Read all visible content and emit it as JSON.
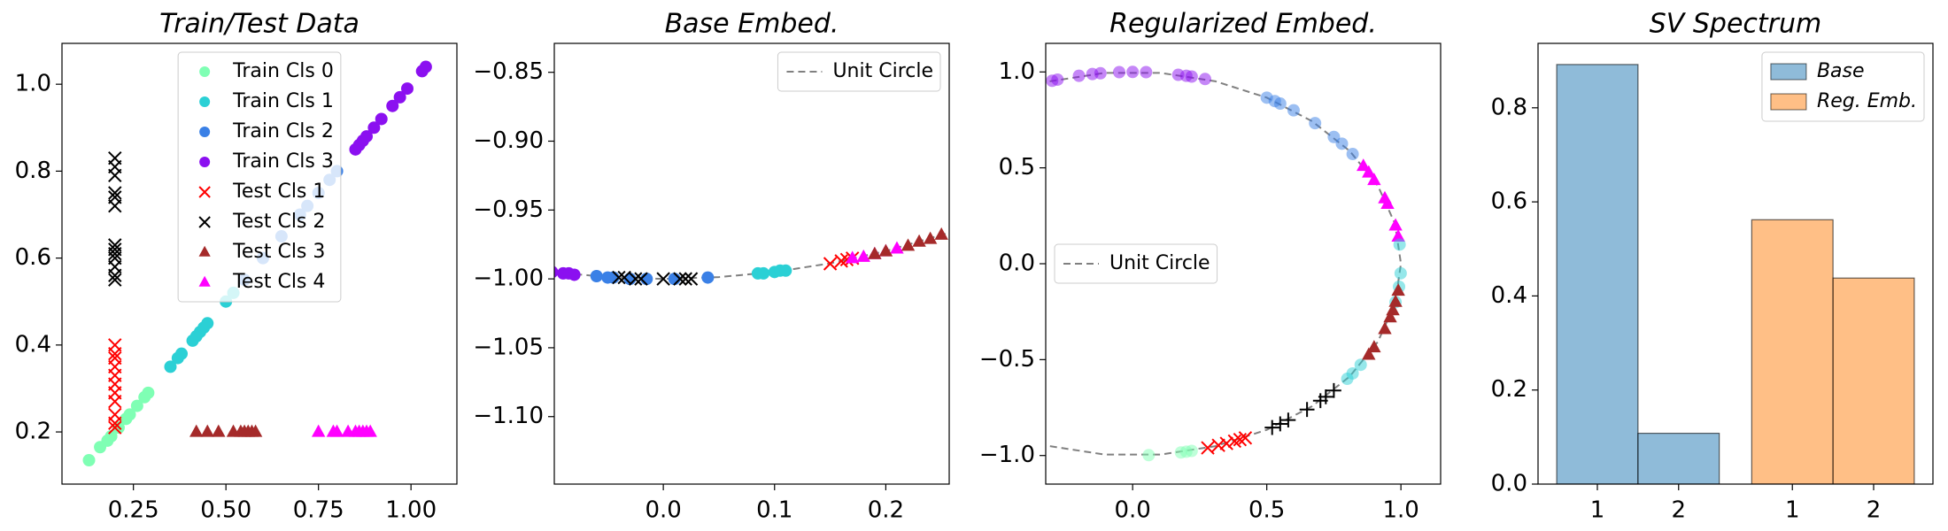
{
  "chart_data": [
    {
      "type": "scatter",
      "title": "Train/Test Data",
      "xlim": [
        0.057,
        1.124
      ],
      "xticks": [
        0.25,
        {
          "value": 0.5,
          "label": "0.50"
        },
        0.75,
        {
          "value": 1.0,
          "label": "1.00"
        }
      ],
      "ylim": [
        0.08,
        1.094
      ],
      "yticks": [
        0.2,
        0.4,
        0.6,
        0.8,
        {
          "value": 1.0,
          "label": "1.0"
        }
      ],
      "legend": "upper center",
      "series": [
        {
          "name": "Train Cls 0",
          "color": "#7fffb4",
          "marker": "o",
          "x": [
            0.13,
            0.16,
            0.18,
            0.19,
            0.21,
            0.23,
            0.24,
            0.26,
            0.28,
            0.29
          ],
          "values": [
            0.135,
            0.165,
            0.18,
            0.19,
            0.21,
            0.23,
            0.24,
            0.26,
            0.28,
            0.29
          ]
        },
        {
          "name": "Train Cls 1",
          "color": "#2bd0d5",
          "marker": "o",
          "x": [
            0.35,
            0.37,
            0.38,
            0.41,
            0.42,
            0.43,
            0.44,
            0.45,
            0.5,
            0.52
          ],
          "values": [
            0.35,
            0.37,
            0.38,
            0.41,
            0.42,
            0.43,
            0.44,
            0.45,
            0.5,
            0.52
          ]
        },
        {
          "name": "Train Cls 2",
          "color": "#3a80e6",
          "marker": "o",
          "x": [
            0.55,
            0.6,
            0.65,
            0.7,
            0.72,
            0.75,
            0.78,
            0.8
          ],
          "values": [
            0.55,
            0.6,
            0.65,
            0.7,
            0.72,
            0.75,
            0.78,
            0.8
          ]
        },
        {
          "name": "Train Cls 3",
          "color": "#8b10f0",
          "marker": "o",
          "x": [
            0.85,
            0.86,
            0.87,
            0.88,
            0.9,
            0.92,
            0.95,
            0.97,
            0.99,
            1.03,
            1.04
          ],
          "values": [
            0.85,
            0.86,
            0.87,
            0.88,
            0.9,
            0.92,
            0.95,
            0.97,
            0.99,
            1.03,
            1.04
          ]
        },
        {
          "name": "Test Cls 1",
          "color": "#ff0000",
          "marker": "x",
          "x": [
            0.2,
            0.2,
            0.2,
            0.2,
            0.2,
            0.2,
            0.2,
            0.2,
            0.2,
            0.2,
            0.2
          ],
          "values": [
            0.21,
            0.22,
            0.24,
            0.27,
            0.29,
            0.31,
            0.33,
            0.35,
            0.37,
            0.38,
            0.4
          ]
        },
        {
          "name": "Test Cls 2",
          "color": "#000000",
          "marker": "x",
          "x": [
            0.2,
            0.2,
            0.2,
            0.2,
            0.2,
            0.2,
            0.2,
            0.2,
            0.2,
            0.2,
            0.2,
            0.2,
            0.2
          ],
          "values": [
            0.55,
            0.56,
            0.58,
            0.6,
            0.61,
            0.62,
            0.63,
            0.72,
            0.74,
            0.75,
            0.79,
            0.81,
            0.83
          ]
        },
        {
          "name": "Test Cls 3",
          "color": "#a52a2a",
          "marker": "^",
          "x": [
            0.42,
            0.45,
            0.48,
            0.52,
            0.54,
            0.55,
            0.56,
            0.57,
            0.58
          ],
          "values": [
            0.2,
            0.2,
            0.2,
            0.2,
            0.2,
            0.2,
            0.2,
            0.2,
            0.2
          ]
        },
        {
          "name": "Test Cls 4",
          "color": "#ff00ff",
          "marker": "^",
          "x": [
            0.75,
            0.79,
            0.8,
            0.83,
            0.85,
            0.86,
            0.87,
            0.88,
            0.89
          ],
          "values": [
            0.2,
            0.2,
            0.2,
            0.2,
            0.2,
            0.2,
            0.2,
            0.2,
            0.2
          ]
        }
      ]
    },
    {
      "type": "scatter",
      "title": "Base Embed.",
      "xlim": [
        -0.098,
        0.257
      ],
      "xticks": [
        {
          "value": 0.0,
          "label": "0.0"
        },
        0.1,
        0.2
      ],
      "ylim": [
        -1.149,
        -0.829
      ],
      "yticks": [
        {
          "value": -0.85,
          "label": "−0.85"
        },
        {
          "value": -0.9,
          "label": "−0.90"
        },
        {
          "value": -0.95,
          "label": "−0.95"
        },
        {
          "value": -1.0,
          "label": "−1.00"
        },
        {
          "value": -1.05,
          "label": "−1.05"
        },
        {
          "value": -1.1,
          "label": "−1.10"
        }
      ],
      "legend": "upper right",
      "series": [
        {
          "name": "Unit Circle",
          "color": "#808080",
          "linestyle": "dashed",
          "x": [
            -0.1,
            -0.05,
            0,
            0.05,
            0.1,
            0.15,
            0.2,
            0.257
          ],
          "values": [
            -0.995,
            -0.9987,
            -1,
            -0.9987,
            -0.995,
            -0.9887,
            -0.9798,
            -0.9664
          ]
        },
        {
          "color": "#8b10f0",
          "marker": "o",
          "x": [
            -0.1,
            -0.09,
            -0.085,
            -0.08
          ],
          "values": [
            -0.995,
            -0.996,
            -0.996,
            -0.997
          ]
        },
        {
          "color": "#3a80e6",
          "marker": "o",
          "x": [
            -0.06,
            -0.05,
            -0.045,
            -0.03,
            -0.015,
            0.01,
            0.04
          ],
          "values": [
            -0.998,
            -0.999,
            -0.999,
            -1.0,
            -1.0,
            -1.0,
            -0.999
          ]
        },
        {
          "color": "#000000",
          "marker": "x",
          "x": [
            -0.04,
            -0.035,
            -0.025,
            -0.02,
            0.0,
            0.015,
            0.02,
            0.025
          ],
          "values": [
            -0.999,
            -0.999,
            -1.0,
            -1.0,
            -1.0,
            -1.0,
            -1.0,
            -1.0
          ]
        },
        {
          "color": "#2bd0d5",
          "marker": "o",
          "x": [
            0.085,
            0.09,
            0.1,
            0.105,
            0.11
          ],
          "values": [
            -0.996,
            -0.996,
            -0.995,
            -0.994,
            -0.994
          ]
        },
        {
          "color": "#ff0000",
          "marker": "x",
          "x": [
            0.15,
            0.16,
            0.165,
            0.17
          ],
          "values": [
            -0.989,
            -0.987,
            -0.986,
            -0.985
          ]
        },
        {
          "color": "#ff00ff",
          "marker": "^",
          "x": [
            0.17,
            0.18,
            0.19,
            0.2,
            0.21
          ],
          "values": [
            -0.985,
            -0.984,
            -0.982,
            -0.98,
            -0.978
          ]
        },
        {
          "color": "#a52a2a",
          "marker": "^",
          "x": [
            0.19,
            0.2,
            0.22,
            0.23,
            0.24,
            0.25
          ],
          "values": [
            -0.982,
            -0.98,
            -0.976,
            -0.973,
            -0.971,
            -0.968
          ]
        }
      ]
    },
    {
      "type": "scatter",
      "title": "Regularized Embed.",
      "xlim": [
        -0.324,
        1.148
      ],
      "xticks": [
        {
          "value": 0.0,
          "label": "0.0"
        },
        0.5,
        {
          "value": 1.0,
          "label": "1.0"
        }
      ],
      "ylim": [
        -1.149,
        1.149
      ],
      "yticks": [
        {
          "value": 1.0,
          "label": "1.0"
        },
        0.5,
        {
          "value": 0.0,
          "label": "0.0"
        },
        {
          "value": -0.5,
          "label": "−0.5"
        },
        {
          "value": -1.0,
          "label": "−1.0"
        }
      ],
      "legend": "center left",
      "series": [
        {
          "name": "Unit Circle",
          "color": "#808080",
          "linestyle": "dashed",
          "x": [
            -0.309,
            -0.105,
            0.105,
            0.309,
            0.5,
            0.669,
            0.809,
            0.914,
            0.978,
            1,
            0.978,
            0.914,
            0.809,
            0.669,
            0.5,
            0.309,
            0.105,
            -0.105,
            -0.309
          ],
          "values": [
            0.951,
            0.995,
            0.995,
            0.951,
            0.866,
            0.743,
            0.588,
            0.407,
            0.208,
            0,
            -0.208,
            -0.407,
            -0.588,
            -0.743,
            -0.866,
            -0.951,
            -0.995,
            -0.995,
            -0.951
          ]
        },
        {
          "color": "#8b10f0",
          "marker": "o",
          "alpha": 0.5,
          "x": [
            -0.3,
            -0.28,
            -0.2,
            -0.15,
            -0.12,
            -0.05,
            0.0,
            0.05,
            0.17,
            0.2,
            0.22,
            0.27
          ],
          "values": [
            0.954,
            0.96,
            0.98,
            0.989,
            0.993,
            0.999,
            1.0,
            0.999,
            0.985,
            0.98,
            0.976,
            0.963
          ]
        },
        {
          "color": "#3a80e6",
          "marker": "o",
          "alpha": 0.5,
          "x": [
            0.5,
            0.53,
            0.55,
            0.6,
            0.68,
            0.75,
            0.78,
            0.82
          ],
          "values": [
            0.866,
            0.848,
            0.835,
            0.8,
            0.733,
            0.661,
            0.626,
            0.572
          ]
        },
        {
          "color": "#ff00ff",
          "marker": "^",
          "x": [
            0.86,
            0.88,
            0.9,
            0.94,
            0.95,
            0.98,
            0.99
          ],
          "values": [
            0.51,
            0.475,
            0.436,
            0.341,
            0.312,
            0.199,
            0.141
          ]
        },
        {
          "color": "#2bd0d5",
          "marker": "o",
          "alpha": 0.5,
          "x": [
            0.995,
            0.999,
            0.993,
            0.98,
            0.85,
            0.82,
            0.8
          ],
          "values": [
            0.1,
            -0.05,
            -0.12,
            -0.2,
            -0.527,
            -0.572,
            -0.6
          ]
        },
        {
          "color": "#a52a2a",
          "marker": "^",
          "x": [
            0.99,
            0.98,
            0.97,
            0.96,
            0.94,
            0.9,
            0.88
          ],
          "values": [
            -0.141,
            -0.199,
            -0.243,
            -0.28,
            -0.341,
            -0.436,
            -0.475
          ]
        },
        {
          "color": "#000000",
          "marker": "+",
          "x": [
            0.52,
            0.55,
            0.58,
            0.65,
            0.7,
            0.72,
            0.75
          ],
          "values": [
            -0.854,
            -0.835,
            -0.815,
            -0.76,
            -0.714,
            -0.694,
            -0.661
          ]
        },
        {
          "color": "#ff0000",
          "marker": "x",
          "x": [
            0.28,
            0.32,
            0.35,
            0.38,
            0.4,
            0.42
          ],
          "values": [
            -0.96,
            -0.947,
            -0.937,
            -0.925,
            -0.917,
            -0.908
          ]
        },
        {
          "color": "#7fffb4",
          "marker": "o",
          "alpha": 0.5,
          "x": [
            0.06,
            0.18,
            0.2,
            0.22
          ],
          "values": [
            -0.998,
            -0.984,
            -0.98,
            -0.976
          ]
        }
      ]
    },
    {
      "type": "bar",
      "title": "SV Spectrum",
      "categories": [
        "1",
        "2",
        "1",
        "2"
      ],
      "ylim": [
        0,
        0.937
      ],
      "yticks": [
        {
          "value": 0.0,
          "label": "0.0"
        },
        0.2,
        0.4,
        0.6,
        0.8
      ],
      "legend": "upper right",
      "series": [
        {
          "name": "Base",
          "color": "#1f77b4",
          "alpha": 0.5,
          "values": [
            0.892,
            0.108,
            null,
            null
          ]
        },
        {
          "name": "Reg. Emb.",
          "color": "#ff7f0e",
          "alpha": 0.5,
          "values": [
            null,
            null,
            0.562,
            0.438
          ]
        }
      ]
    }
  ]
}
